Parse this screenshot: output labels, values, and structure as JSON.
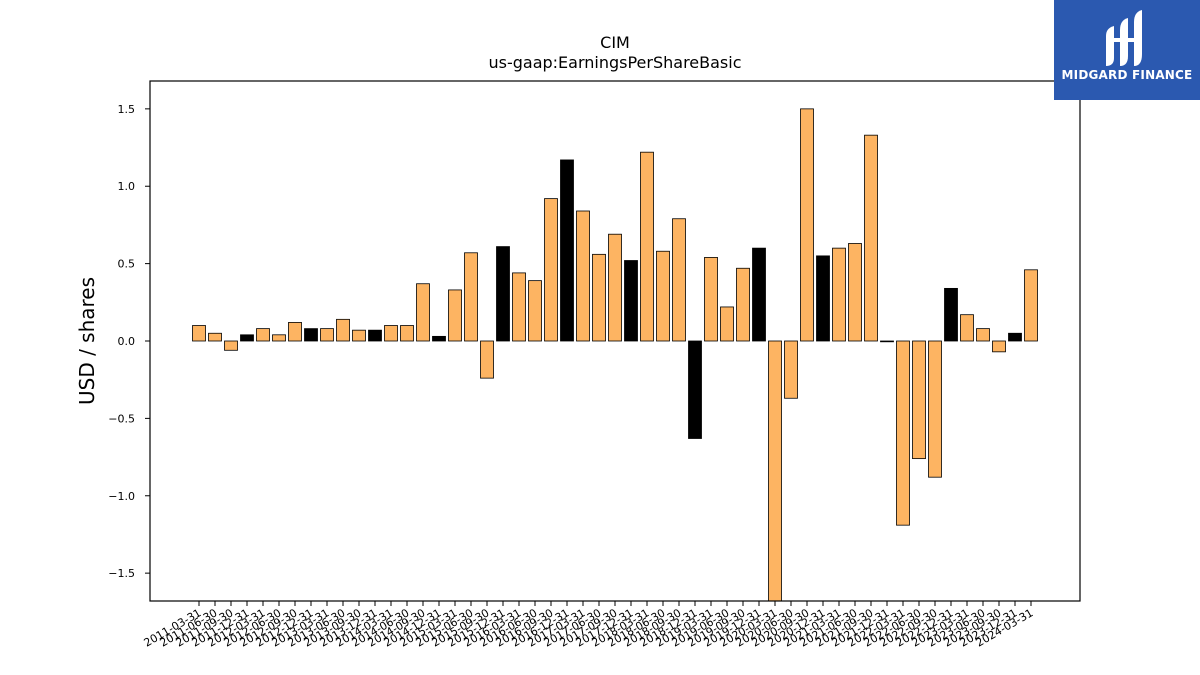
{
  "brand": {
    "name": "MIDGARD FINANCE",
    "accent": "#2b59b0"
  },
  "chart_data": {
    "type": "bar",
    "title": "CIM",
    "subtitle": "us-gaap:EarningsPerShareBasic",
    "xlabel": "",
    "ylabel": "USD / shares",
    "ylim": [
      -1.68,
      1.68
    ],
    "yticks": [
      -1.5,
      -1.0,
      -0.5,
      0.0,
      0.5,
      1.0,
      1.5
    ],
    "ytick_labels": [
      "−1.5",
      "−1.0",
      "−0.5",
      "0.0",
      "0.5",
      "1.0",
      "1.5"
    ],
    "colors": {
      "quarter": "#fdb462",
      "highlight": "#000000"
    },
    "categories": [
      "2011-03-31",
      "2011-06-30",
      "2011-09-30",
      "2011-12-31",
      "2012-03-31",
      "2012-06-30",
      "2012-09-30",
      "2012-12-31",
      "2013-03-31",
      "2013-06-30",
      "2013-09-30",
      "2013-12-31",
      "2014-03-31",
      "2014-06-30",
      "2014-09-30",
      "2014-12-31",
      "2015-03-31",
      "2015-06-30",
      "2015-09-30",
      "2015-12-31",
      "2016-03-31",
      "2016-06-30",
      "2016-09-30",
      "2016-12-31",
      "2017-03-31",
      "2017-06-30",
      "2017-09-30",
      "2017-12-31",
      "2018-03-31",
      "2018-06-30",
      "2018-09-30",
      "2018-12-31",
      "2019-03-31",
      "2019-06-30",
      "2019-09-30",
      "2019-12-31",
      "2020-03-31",
      "2020-06-30",
      "2020-09-30",
      "2020-12-31",
      "2021-03-31",
      "2021-06-30",
      "2021-09-30",
      "2021-12-31",
      "2022-03-31",
      "2022-06-30",
      "2022-09-30",
      "2022-12-31",
      "2023-03-31",
      "2023-06-30",
      "2023-09-30",
      "2023-12-31",
      "2024-03-31"
    ],
    "values": [
      0.1,
      0.05,
      -0.06,
      0.04,
      0.08,
      0.04,
      0.12,
      0.08,
      0.08,
      0.14,
      0.07,
      0.07,
      0.1,
      0.1,
      0.37,
      0.03,
      0.33,
      0.57,
      -0.24,
      0.61,
      0.44,
      0.39,
      0.92,
      1.17,
      0.84,
      0.56,
      0.69,
      0.52,
      1.22,
      0.58,
      0.79,
      -0.63,
      0.54,
      0.22,
      0.47,
      0.6,
      -1.7,
      -0.37,
      1.5,
      0.55,
      0.6,
      0.63,
      1.33,
      0.0,
      -1.19,
      -0.76,
      -0.88,
      0.34,
      0.17,
      0.08,
      -0.07,
      0.05,
      0.46
    ],
    "highlight": [
      false,
      false,
      false,
      true,
      false,
      false,
      false,
      true,
      false,
      false,
      false,
      true,
      false,
      false,
      false,
      true,
      false,
      false,
      false,
      true,
      false,
      false,
      false,
      true,
      false,
      false,
      false,
      true,
      false,
      false,
      false,
      true,
      false,
      false,
      false,
      true,
      false,
      false,
      false,
      true,
      false,
      false,
      false,
      true,
      false,
      false,
      false,
      true,
      false,
      false,
      false,
      true,
      false
    ],
    "grid": false,
    "legend": "none"
  }
}
